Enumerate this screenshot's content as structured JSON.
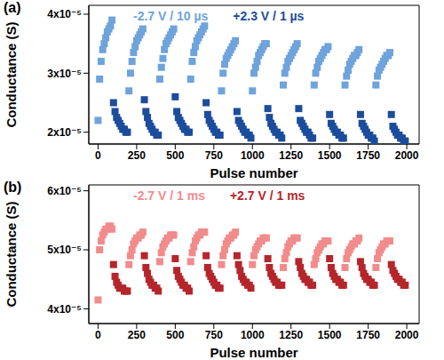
{
  "chart_data": [
    {
      "type": "scatter",
      "panel_label": "(a)",
      "xlabel": "Pulse number",
      "ylabel": "Conductance (S)",
      "legend": "top",
      "xlim": [
        -60,
        2080
      ],
      "xticks": [
        0,
        250,
        500,
        750,
        1000,
        1250,
        1500,
        1750,
        2000
      ],
      "ylim": [
        1.8e-05,
        4.15e-05
      ],
      "yticks": [
        {
          "value": 2e-05,
          "label": "2x10⁻⁵"
        },
        {
          "value": 3e-05,
          "label": "3x10⁻⁵"
        },
        {
          "value": 4e-05,
          "label": "4x10⁻⁵"
        }
      ],
      "series": [
        {
          "name": "-2.7 V / 10 µs",
          "color": "#6ea3dc",
          "marker": "square",
          "x": [
            0,
            10,
            20,
            30,
            40,
            50,
            60,
            70,
            80,
            90,
            200,
            210,
            220,
            230,
            240,
            250,
            260,
            270,
            280,
            290,
            400,
            410,
            420,
            430,
            440,
            450,
            460,
            470,
            480,
            490,
            600,
            610,
            620,
            630,
            640,
            650,
            660,
            670,
            680,
            690,
            800,
            810,
            820,
            830,
            840,
            850,
            860,
            870,
            880,
            890,
            1000,
            1010,
            1020,
            1030,
            1040,
            1050,
            1060,
            1070,
            1080,
            1090,
            1200,
            1210,
            1220,
            1230,
            1240,
            1250,
            1260,
            1270,
            1280,
            1290,
            1400,
            1410,
            1420,
            1430,
            1440,
            1450,
            1460,
            1470,
            1480,
            1490,
            1600,
            1610,
            1620,
            1630,
            1640,
            1650,
            1660,
            1670,
            1680,
            1690,
            1800,
            1810,
            1820,
            1830,
            1840,
            1850,
            1860,
            1870,
            1880,
            1890
          ],
          "values": [
            2.2e-05,
            2.9e-05,
            3.2e-05,
            3.4e-05,
            3.5e-05,
            3.6e-05,
            3.7e-05,
            3.75e-05,
            3.8e-05,
            3.9e-05,
            2.7e-05,
            3e-05,
            3.2e-05,
            3.35e-05,
            3.45e-05,
            3.55e-05,
            3.6e-05,
            3.65e-05,
            3.7e-05,
            3.75e-05,
            2.9e-05,
            3.1e-05,
            3.25e-05,
            3.4e-05,
            3.5e-05,
            3.55e-05,
            3.6e-05,
            3.65e-05,
            3.7e-05,
            3.75e-05,
            2.9e-05,
            3.2e-05,
            3.35e-05,
            3.45e-05,
            3.55e-05,
            3.6e-05,
            3.65e-05,
            3.7e-05,
            3.75e-05,
            3.8e-05,
            2.7e-05,
            3e-05,
            3.15e-05,
            3.25e-05,
            3.3e-05,
            3.35e-05,
            3.4e-05,
            3.45e-05,
            3.5e-05,
            3.55e-05,
            2.7e-05,
            3e-05,
            3.1e-05,
            3.2e-05,
            3.3e-05,
            3.35e-05,
            3.4e-05,
            3.45e-05,
            3.5e-05,
            3.5e-05,
            2.8e-05,
            3e-05,
            3.1e-05,
            3.2e-05,
            3.25e-05,
            3.3e-05,
            3.35e-05,
            3.4e-05,
            3.45e-05,
            3.5e-05,
            2.8e-05,
            3e-05,
            3.1e-05,
            3.2e-05,
            3.25e-05,
            3.3e-05,
            3.35e-05,
            3.4e-05,
            3.4e-05,
            3.45e-05,
            2.8e-05,
            2.95e-05,
            3.05e-05,
            3.15e-05,
            3.2e-05,
            3.25e-05,
            3.3e-05,
            3.3e-05,
            3.35e-05,
            3.4e-05,
            2.8e-05,
            2.95e-05,
            3.05e-05,
            3.1e-05,
            3.15e-05,
            3.2e-05,
            3.25e-05,
            3.3e-05,
            3.3e-05,
            3.35e-05
          ]
        },
        {
          "name": "+2.3 V / 1 µs",
          "color": "#1c4c9c",
          "marker": "square",
          "x": [
            100,
            110,
            120,
            130,
            140,
            150,
            160,
            170,
            180,
            190,
            300,
            310,
            320,
            330,
            340,
            350,
            360,
            370,
            380,
            390,
            500,
            510,
            520,
            530,
            540,
            550,
            560,
            570,
            580,
            590,
            700,
            710,
            720,
            730,
            740,
            750,
            760,
            770,
            780,
            790,
            900,
            910,
            920,
            930,
            940,
            950,
            960,
            970,
            980,
            990,
            1100,
            1110,
            1120,
            1130,
            1140,
            1150,
            1160,
            1170,
            1180,
            1190,
            1300,
            1310,
            1320,
            1330,
            1340,
            1350,
            1360,
            1370,
            1380,
            1390,
            1500,
            1510,
            1520,
            1530,
            1540,
            1550,
            1560,
            1570,
            1580,
            1590,
            1700,
            1710,
            1720,
            1730,
            1740,
            1750,
            1760,
            1770,
            1780,
            1790,
            1900,
            1910,
            1920,
            1930,
            1940,
            1950,
            1960,
            1970,
            1980,
            1990
          ],
          "values": [
            2.5e-05,
            2.35e-05,
            2.25e-05,
            2.2e-05,
            2.15e-05,
            2.1e-05,
            2.05e-05,
            2.05e-05,
            2e-05,
            2e-05,
            2.55e-05,
            2.35e-05,
            2.25e-05,
            2.15e-05,
            2.1e-05,
            2.05e-05,
            2e-05,
            2e-05,
            1.95e-05,
            1.95e-05,
            2.6e-05,
            2.35e-05,
            2.25e-05,
            2.2e-05,
            2.15e-05,
            2.1e-05,
            2.05e-05,
            2.05e-05,
            2e-05,
            2e-05,
            2.5e-05,
            2.3e-05,
            2.2e-05,
            2.15e-05,
            2.1e-05,
            2.05e-05,
            2e-05,
            2e-05,
            1.95e-05,
            1.95e-05,
            2.35e-05,
            2.2e-05,
            2.15e-05,
            2.1e-05,
            2.05e-05,
            2e-05,
            2e-05,
            1.95e-05,
            1.95e-05,
            1.9e-05,
            2.4e-05,
            2.25e-05,
            2.15e-05,
            2.1e-05,
            2.05e-05,
            2e-05,
            2e-05,
            1.95e-05,
            1.95e-05,
            1.9e-05,
            2.4e-05,
            2.2e-05,
            2.15e-05,
            2.1e-05,
            2.05e-05,
            2e-05,
            2e-05,
            1.95e-05,
            1.9e-05,
            1.9e-05,
            2.3e-05,
            2.15e-05,
            2.1e-05,
            2.05e-05,
            2e-05,
            2e-05,
            1.95e-05,
            1.95e-05,
            1.9e-05,
            1.9e-05,
            2.3e-05,
            2.15e-05,
            2.1e-05,
            2.05e-05,
            2e-05,
            1.95e-05,
            1.95e-05,
            1.9e-05,
            1.9e-05,
            1.85e-05,
            2.3e-05,
            2.1e-05,
            2.05e-05,
            2e-05,
            1.95e-05,
            1.95e-05,
            1.9e-05,
            1.9e-05,
            1.85e-05,
            1.85e-05
          ]
        }
      ]
    },
    {
      "type": "scatter",
      "panel_label": "(b)",
      "xlabel": "Pulse number",
      "ylabel": "Conductance (S)",
      "legend": "top",
      "xlim": [
        -60,
        2080
      ],
      "xticks": [
        0,
        250,
        500,
        750,
        1000,
        1250,
        1500,
        1750,
        2000
      ],
      "ylim": [
        3.75e-05,
        6.1e-05
      ],
      "yticks": [
        {
          "value": 4e-05,
          "label": "4x10⁻⁵"
        },
        {
          "value": 5e-05,
          "label": "5x10⁻⁵"
        },
        {
          "value": 6e-05,
          "label": "6x10⁻⁵"
        }
      ],
      "series": [
        {
          "name": "-2.7 V / 1 ms",
          "color": "#f28b8b",
          "marker": "square",
          "x": [
            0,
            10,
            20,
            30,
            40,
            50,
            60,
            70,
            80,
            90,
            200,
            210,
            220,
            230,
            240,
            250,
            260,
            270,
            280,
            290,
            400,
            410,
            420,
            430,
            440,
            450,
            460,
            470,
            480,
            490,
            600,
            610,
            620,
            630,
            640,
            650,
            660,
            670,
            680,
            690,
            800,
            810,
            820,
            830,
            840,
            850,
            860,
            870,
            880,
            890,
            1000,
            1010,
            1020,
            1030,
            1040,
            1050,
            1060,
            1070,
            1080,
            1090,
            1200,
            1210,
            1220,
            1230,
            1240,
            1250,
            1260,
            1270,
            1280,
            1290,
            1400,
            1410,
            1420,
            1430,
            1440,
            1450,
            1460,
            1470,
            1480,
            1490,
            1600,
            1610,
            1620,
            1630,
            1640,
            1650,
            1660,
            1670,
            1680,
            1690,
            1800,
            1810,
            1820,
            1830,
            1840,
            1850,
            1860,
            1870,
            1880,
            1890
          ],
          "values": [
            4.15e-05,
            5e-05,
            5.15e-05,
            5.25e-05,
            5.3e-05,
            5.35e-05,
            5.35e-05,
            5.4e-05,
            5.4e-05,
            5.35e-05,
            4.75e-05,
            4.9e-05,
            5e-05,
            5.1e-05,
            5.15e-05,
            5.2e-05,
            5.2e-05,
            5.25e-05,
            5.25e-05,
            5.3e-05,
            4.8e-05,
            4.95e-05,
            5.05e-05,
            5.1e-05,
            5.15e-05,
            5.2e-05,
            5.2e-05,
            5.25e-05,
            5.25e-05,
            5.25e-05,
            4.8e-05,
            4.95e-05,
            5.05e-05,
            5.15e-05,
            5.2e-05,
            5.25e-05,
            5.25e-05,
            5.3e-05,
            5.3e-05,
            5.3e-05,
            4.75e-05,
            4.9e-05,
            5e-05,
            5.1e-05,
            5.15e-05,
            5.2e-05,
            5.2e-05,
            5.25e-05,
            5.25e-05,
            5.3e-05,
            4.75e-05,
            4.9e-05,
            5e-05,
            5.05e-05,
            5.1e-05,
            5.15e-05,
            5.15e-05,
            5.2e-05,
            5.2e-05,
            5.2e-05,
            4.7e-05,
            4.85e-05,
            4.95e-05,
            5.05e-05,
            5.1e-05,
            5.15e-05,
            5.15e-05,
            5.2e-05,
            5.2e-05,
            5.2e-05,
            4.75e-05,
            4.85e-05,
            4.95e-05,
            5e-05,
            5.05e-05,
            5.1e-05,
            5.1e-05,
            5.15e-05,
            5.15e-05,
            5.15e-05,
            4.7e-05,
            4.85e-05,
            4.95e-05,
            5e-05,
            5.05e-05,
            5.1e-05,
            5.1e-05,
            5.15e-05,
            5.15e-05,
            5.2e-05,
            4.7e-05,
            4.85e-05,
            4.95e-05,
            5e-05,
            5.05e-05,
            5.1e-05,
            5.1e-05,
            5.15e-05,
            5.15e-05,
            5.15e-05
          ]
        },
        {
          "name": "+2.7 V / 1 ms",
          "color": "#b5262b",
          "marker": "square",
          "x": [
            100,
            110,
            120,
            130,
            140,
            150,
            160,
            170,
            180,
            190,
            300,
            310,
            320,
            330,
            340,
            350,
            360,
            370,
            380,
            390,
            500,
            510,
            520,
            530,
            540,
            550,
            560,
            570,
            580,
            590,
            700,
            710,
            720,
            730,
            740,
            750,
            760,
            770,
            780,
            790,
            900,
            910,
            920,
            930,
            940,
            950,
            960,
            970,
            980,
            990,
            1100,
            1110,
            1120,
            1130,
            1140,
            1150,
            1160,
            1170,
            1180,
            1190,
            1300,
            1310,
            1320,
            1330,
            1340,
            1350,
            1360,
            1370,
            1380,
            1390,
            1500,
            1510,
            1520,
            1530,
            1540,
            1550,
            1560,
            1570,
            1580,
            1590,
            1700,
            1710,
            1720,
            1730,
            1740,
            1750,
            1760,
            1770,
            1780,
            1790,
            1900,
            1910,
            1920,
            1930,
            1940,
            1950,
            1960,
            1970,
            1980,
            1990
          ],
          "values": [
            4.75e-05,
            4.55e-05,
            4.45e-05,
            4.4e-05,
            4.35e-05,
            4.35e-05,
            4.35e-05,
            4.3e-05,
            4.3e-05,
            4.3e-05,
            4.9e-05,
            4.7e-05,
            4.6e-05,
            4.5e-05,
            4.45e-05,
            4.4e-05,
            4.4e-05,
            4.35e-05,
            4.35e-05,
            4.3e-05,
            4.85e-05,
            4.65e-05,
            4.55e-05,
            4.5e-05,
            4.45e-05,
            4.4e-05,
            4.4e-05,
            4.35e-05,
            4.35e-05,
            4.3e-05,
            4.9e-05,
            4.7e-05,
            4.6e-05,
            4.55e-05,
            4.5e-05,
            4.45e-05,
            4.4e-05,
            4.4e-05,
            4.35e-05,
            4.35e-05,
            4.9e-05,
            4.75e-05,
            4.65e-05,
            4.55e-05,
            4.5e-05,
            4.45e-05,
            4.45e-05,
            4.4e-05,
            4.4e-05,
            4.35e-05,
            4.85e-05,
            4.7e-05,
            4.6e-05,
            4.55e-05,
            4.5e-05,
            4.45e-05,
            4.45e-05,
            4.4e-05,
            4.4e-05,
            4.4e-05,
            4.8e-05,
            4.7e-05,
            4.6e-05,
            4.55e-05,
            4.5e-05,
            4.5e-05,
            4.45e-05,
            4.45e-05,
            4.4e-05,
            4.4e-05,
            4.85e-05,
            4.7e-05,
            4.6e-05,
            4.55e-05,
            4.5e-05,
            4.5e-05,
            4.45e-05,
            4.45e-05,
            4.4e-05,
            4.4e-05,
            4.8e-05,
            4.7e-05,
            4.6e-05,
            4.55e-05,
            4.5e-05,
            4.5e-05,
            4.45e-05,
            4.45e-05,
            4.4e-05,
            4.4e-05,
            4.75e-05,
            4.65e-05,
            4.6e-05,
            4.55e-05,
            4.5e-05,
            4.5e-05,
            4.45e-05,
            4.45e-05,
            4.4e-05,
            4.4e-05
          ]
        }
      ]
    }
  ]
}
